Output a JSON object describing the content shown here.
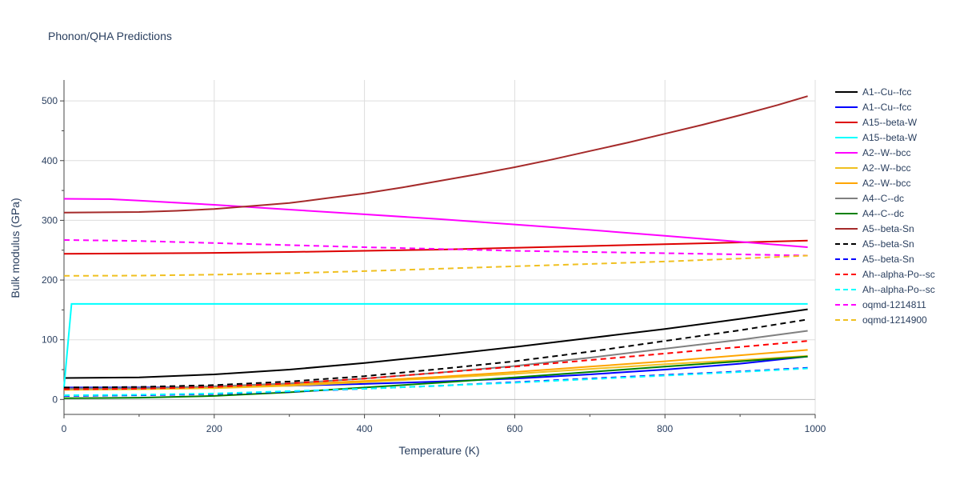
{
  "chart_data": {
    "type": "line",
    "title": "Phonon/QHA Predictions",
    "xlabel": "Temperature (K)",
    "ylabel": "Bulk modulus (GPa)",
    "xlim": [
      0,
      1000
    ],
    "ylim": [
      -25,
      535
    ],
    "xticks": [
      0,
      200,
      400,
      600,
      800,
      1000
    ],
    "yticks": [
      0,
      100,
      200,
      300,
      400,
      500
    ],
    "grid": true,
    "legend": "right",
    "series": [
      {
        "name": "A1--Cu--fcc",
        "color": "#000000",
        "dash": "solid",
        "x": [
          0,
          100,
          200,
          300,
          400,
          500,
          600,
          700,
          800,
          900,
          990
        ],
        "y": [
          36,
          37,
          42,
          50,
          61,
          74,
          88,
          103,
          118,
          135,
          151
        ]
      },
      {
        "name": "A1--Cu--fcc",
        "color": "#0000ff",
        "dash": "solid",
        "x": [
          0,
          100,
          200,
          300,
          400,
          500,
          600,
          700,
          800,
          900,
          990
        ],
        "y": [
          20,
          20,
          21,
          23,
          26,
          30,
          35,
          42,
          50,
          60,
          72
        ]
      },
      {
        "name": "A15--beta-W",
        "color": "#dd0000",
        "dash": "solid",
        "x": [
          0,
          100,
          200,
          300,
          400,
          500,
          600,
          700,
          800,
          900,
          990
        ],
        "y": [
          244,
          244.5,
          245.5,
          247,
          249,
          251,
          254,
          257,
          260,
          263,
          266
        ]
      },
      {
        "name": "A15--beta-W",
        "color": "#00ffff",
        "dash": "solid",
        "x": [
          0,
          10,
          20,
          100,
          200,
          400,
          600,
          800,
          990
        ],
        "y": [
          20,
          160,
          160,
          160,
          160,
          160,
          160,
          160,
          160
        ]
      },
      {
        "name": "A2--W--bcc",
        "color": "#ff00ff",
        "dash": "solid",
        "x": [
          0,
          60,
          100,
          200,
          300,
          400,
          500,
          600,
          700,
          800,
          900,
          990
        ],
        "y": [
          336,
          335.5,
          333,
          326,
          318,
          310,
          302,
          293,
          284,
          274,
          264,
          255
        ]
      },
      {
        "name": "A2--W--bcc",
        "color": "#f0c020",
        "dash": "solid",
        "x": [
          0,
          100,
          200,
          300,
          400,
          500,
          600,
          700,
          800,
          900,
          990
        ],
        "y": [
          16,
          17,
          19,
          23,
          29,
          36,
          43,
          51,
          59,
          66,
          73
        ]
      },
      {
        "name": "A2--W--bcc",
        "color": "#ffa500",
        "dash": "solid",
        "x": [
          0,
          100,
          200,
          300,
          400,
          500,
          600,
          700,
          800,
          900,
          990
        ],
        "y": [
          18,
          19,
          21,
          25,
          31,
          38,
          46,
          55,
          64,
          74,
          83
        ]
      },
      {
        "name": "A4--C--dc",
        "color": "#808080",
        "dash": "solid",
        "x": [
          0,
          100,
          200,
          300,
          400,
          500,
          600,
          700,
          800,
          900,
          990
        ],
        "y": [
          18,
          19,
          22,
          27,
          35,
          45,
          56,
          70,
          85,
          100,
          115
        ]
      },
      {
        "name": "A4--C--dc",
        "color": "#008000",
        "dash": "solid",
        "x": [
          0,
          100,
          200,
          300,
          400,
          500,
          600,
          700,
          800,
          900,
          990
        ],
        "y": [
          2,
          3,
          6,
          12,
          20,
          28,
          37,
          46,
          55,
          64,
          72
        ]
      },
      {
        "name": "A5--beta-Sn",
        "color": "#a52a2a",
        "dash": "solid",
        "x": [
          0,
          100,
          150,
          200,
          250,
          300,
          350,
          400,
          450,
          500,
          550,
          600,
          650,
          700,
          750,
          800,
          850,
          900,
          950,
          990
        ],
        "y": [
          313,
          314,
          316,
          319,
          324,
          329,
          337,
          345,
          355,
          366,
          377,
          389,
          402,
          416,
          430,
          445,
          460,
          476,
          493,
          508
        ]
      },
      {
        "name": "A5--beta-Sn",
        "color": "#000000",
        "dash": "dash",
        "x": [
          0,
          100,
          200,
          300,
          400,
          500,
          600,
          700,
          800,
          900,
          990
        ],
        "y": [
          20,
          21,
          24,
          30,
          39,
          51,
          64,
          80,
          98,
          116,
          134
        ]
      },
      {
        "name": "A5--beta-Sn",
        "color": "#0000ff",
        "dash": "dash",
        "x": [
          0,
          100,
          200,
          300,
          400,
          500,
          600,
          700,
          800,
          900,
          990
        ],
        "y": [
          6,
          7,
          9,
          13,
          18,
          23,
          29,
          35,
          41,
          47,
          53
        ]
      },
      {
        "name": "Ah--alpha-Po--sc",
        "color": "#ff0000",
        "dash": "dash",
        "x": [
          0,
          100,
          200,
          300,
          400,
          500,
          600,
          700,
          800,
          900,
          990
        ],
        "y": [
          17,
          18,
          21,
          27,
          35,
          45,
          55,
          66,
          77,
          88,
          98
        ]
      },
      {
        "name": "Ah--alpha-Po--sc",
        "color": "#00ffff",
        "dash": "dash",
        "x": [
          0,
          100,
          200,
          300,
          400,
          500,
          600,
          700,
          800,
          900,
          990
        ],
        "y": [
          7,
          8,
          10,
          14,
          18,
          23,
          28,
          34,
          40,
          46,
          52
        ]
      },
      {
        "name": "oqmd-1214811",
        "color": "#ff00ff",
        "dash": "dash",
        "x": [
          0,
          100,
          200,
          300,
          400,
          500,
          600,
          700,
          800,
          900,
          990
        ],
        "y": [
          267,
          265.5,
          262,
          258.5,
          255,
          252,
          249,
          247,
          245,
          243,
          241
        ]
      },
      {
        "name": "oqmd-1214900",
        "color": "#f0c020",
        "dash": "dash",
        "x": [
          0,
          100,
          200,
          300,
          400,
          500,
          600,
          700,
          800,
          900,
          990
        ],
        "y": [
          207,
          207.5,
          209,
          211.5,
          215,
          219,
          223,
          227,
          231,
          236,
          241
        ]
      }
    ]
  }
}
